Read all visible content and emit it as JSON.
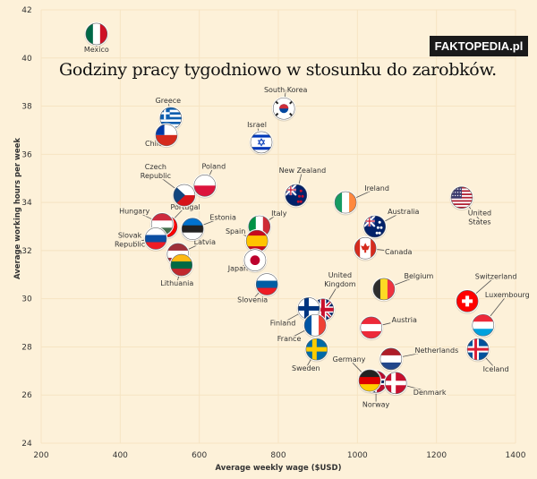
{
  "title": "Godziny pracy tygodniowo w stosunku do zarobków.",
  "watermark": "FAKTOPEDIA.pl",
  "chart_data": {
    "type": "scatter",
    "xlabel": "Average weekly wage ($USD)",
    "ylabel": "Average working hours per week",
    "xlim": [
      200,
      1400
    ],
    "ylim": [
      24,
      42
    ],
    "xticks": [
      "200",
      "400",
      "600",
      "800",
      "1000",
      "1200",
      "1400"
    ],
    "yticks": [
      "24",
      "26",
      "28",
      "30",
      "32",
      "34",
      "36",
      "38",
      "40",
      "42"
    ],
    "grid": true,
    "points": [
      {
        "name": "Mexico",
        "x": 340,
        "y": 41.0,
        "flag": {
          "type": "v",
          "colors": [
            "#006847",
            "#ffffff",
            "#ce1126"
          ]
        }
      },
      {
        "name": "Greece",
        "x": 528,
        "y": 37.5,
        "flag": {
          "type": "greece",
          "colors": [
            "#0d5eaf",
            "#ffffff"
          ]
        }
      },
      {
        "name": "Chile",
        "x": 517,
        "y": 36.8,
        "flag": {
          "type": "chile",
          "colors": [
            "#0039a6",
            "#ffffff",
            "#d52b1e"
          ]
        }
      },
      {
        "name": "South Korea",
        "x": 814,
        "y": 37.9,
        "flag": {
          "type": "korea",
          "colors": [
            "#ffffff",
            "#cd2e3a",
            "#0047a0"
          ]
        }
      },
      {
        "name": "Israel",
        "x": 757,
        "y": 36.5,
        "flag": {
          "type": "israel",
          "colors": [
            "#ffffff",
            "#0038b8"
          ]
        }
      },
      {
        "name": "Czech Republic",
        "x": 562,
        "y": 34.3,
        "flag": {
          "type": "czech",
          "colors": [
            "#ffffff",
            "#d7141a",
            "#11457e"
          ]
        }
      },
      {
        "name": "Poland",
        "x": 614,
        "y": 34.7,
        "flag": {
          "type": "h",
          "colors": [
            "#ffffff",
            "#dc143c"
          ]
        }
      },
      {
        "name": "New Zealand",
        "x": 845,
        "y": 34.3,
        "flag": {
          "type": "stars",
          "colors": [
            "#012169",
            "#c8102e"
          ]
        }
      },
      {
        "name": "Ireland",
        "x": 970,
        "y": 34.0,
        "flag": {
          "type": "v",
          "colors": [
            "#169b62",
            "#ffffff",
            "#ff883e"
          ]
        }
      },
      {
        "name": "United States",
        "x": 1264,
        "y": 34.2,
        "flag": {
          "type": "us",
          "colors": [
            "#b22234",
            "#ffffff",
            "#3c3b6e"
          ]
        }
      },
      {
        "name": "Portugal",
        "x": 517,
        "y": 33.0,
        "flag": {
          "type": "v",
          "colors": [
            "#006600",
            "#ff0000",
            "#ff0000"
          ]
        }
      },
      {
        "name": "Hungary",
        "x": 506,
        "y": 33.1,
        "flag": {
          "type": "h",
          "colors": [
            "#cd2a3e",
            "#ffffff",
            "#436f4d"
          ]
        }
      },
      {
        "name": "Estonia",
        "x": 583,
        "y": 32.9,
        "flag": {
          "type": "h",
          "colors": [
            "#0072ce",
            "#222222",
            "#ffffff"
          ]
        }
      },
      {
        "name": "Italy",
        "x": 752,
        "y": 33.0,
        "flag": {
          "type": "v",
          "colors": [
            "#009246",
            "#ffffff",
            "#ce2b37"
          ]
        }
      },
      {
        "name": "Australia",
        "x": 1044,
        "y": 33.0,
        "flag": {
          "type": "stars",
          "colors": [
            "#012169",
            "#ffffff"
          ]
        }
      },
      {
        "name": "Slovak Republic",
        "x": 490,
        "y": 32.5,
        "flag": {
          "type": "h",
          "colors": [
            "#ffffff",
            "#0b4ea2",
            "#ee1c25"
          ]
        }
      },
      {
        "name": "Latvia",
        "x": 546,
        "y": 31.85,
        "flag": {
          "type": "h",
          "colors": [
            "#9e3039",
            "#ffffff",
            "#9e3039"
          ]
        }
      },
      {
        "name": "Spain",
        "x": 746,
        "y": 32.4,
        "flag": {
          "type": "spain",
          "colors": [
            "#c60b1e",
            "#ffc400"
          ]
        }
      },
      {
        "name": "Canada",
        "x": 1020,
        "y": 32.1,
        "flag": {
          "type": "canada",
          "colors": [
            "#d52b1e",
            "#ffffff"
          ]
        }
      },
      {
        "name": "Lithuania",
        "x": 555,
        "y": 31.4,
        "flag": {
          "type": "h",
          "colors": [
            "#fdb913",
            "#006a44",
            "#c1272d"
          ]
        }
      },
      {
        "name": "Japan",
        "x": 741,
        "y": 31.6,
        "flag": {
          "type": "japan",
          "colors": [
            "#ffffff",
            "#bc002d"
          ]
        }
      },
      {
        "name": "Slovenia",
        "x": 771,
        "y": 30.6,
        "flag": {
          "type": "h",
          "colors": [
            "#ffffff",
            "#005da4",
            "#ed1c24"
          ]
        }
      },
      {
        "name": "Belgium",
        "x": 1067,
        "y": 30.4,
        "flag": {
          "type": "v",
          "colors": [
            "#2d2d2d",
            "#fdda24",
            "#ef3340"
          ]
        }
      },
      {
        "name": "Switzerland",
        "x": 1278,
        "y": 29.9,
        "flag": {
          "type": "swiss",
          "colors": [
            "#ff0000",
            "#ffffff"
          ]
        }
      },
      {
        "name": "United Kingdom",
        "x": 913,
        "y": 29.55,
        "flag": {
          "type": "uk",
          "colors": [
            "#012169",
            "#ffffff",
            "#c8102e"
          ]
        }
      },
      {
        "name": "Finland",
        "x": 877,
        "y": 29.6,
        "flag": {
          "type": "nordic",
          "colors": [
            "#ffffff",
            "#003580"
          ]
        }
      },
      {
        "name": "Luxembourg",
        "x": 1318,
        "y": 28.9,
        "flag": {
          "type": "h",
          "colors": [
            "#ed2939",
            "#ffffff",
            "#00a1de"
          ]
        }
      },
      {
        "name": "France",
        "x": 893,
        "y": 28.9,
        "flag": {
          "type": "v",
          "colors": [
            "#0055a4",
            "#ffffff",
            "#ef4135"
          ]
        }
      },
      {
        "name": "Austria",
        "x": 1035,
        "y": 28.8,
        "flag": {
          "type": "h",
          "colors": [
            "#ed2939",
            "#ffffff",
            "#ed2939"
          ]
        }
      },
      {
        "name": "Sweden",
        "x": 897,
        "y": 27.9,
        "flag": {
          "type": "nordic",
          "colors": [
            "#006aa7",
            "#fecc00"
          ]
        }
      },
      {
        "name": "Iceland",
        "x": 1305,
        "y": 27.9,
        "flag": {
          "type": "nordic2",
          "colors": [
            "#02529c",
            "#ffffff",
            "#dc1e35"
          ]
        }
      },
      {
        "name": "Netherlands",
        "x": 1085,
        "y": 27.5,
        "flag": {
          "type": "h",
          "colors": [
            "#ae1c28",
            "#ffffff",
            "#21468b"
          ]
        }
      },
      {
        "name": "Norway",
        "x": 1047,
        "y": 26.55,
        "flag": {
          "type": "nordic2",
          "colors": [
            "#ba0c2f",
            "#ffffff",
            "#00205b"
          ]
        }
      },
      {
        "name": "Germany",
        "x": 1031,
        "y": 26.6,
        "flag": {
          "type": "h",
          "colors": [
            "#222222",
            "#dd0000",
            "#ffce00"
          ]
        }
      },
      {
        "name": "Denmark",
        "x": 1097,
        "y": 26.5,
        "flag": {
          "type": "nordic",
          "colors": [
            "#c8102e",
            "#ffffff"
          ]
        }
      }
    ]
  }
}
